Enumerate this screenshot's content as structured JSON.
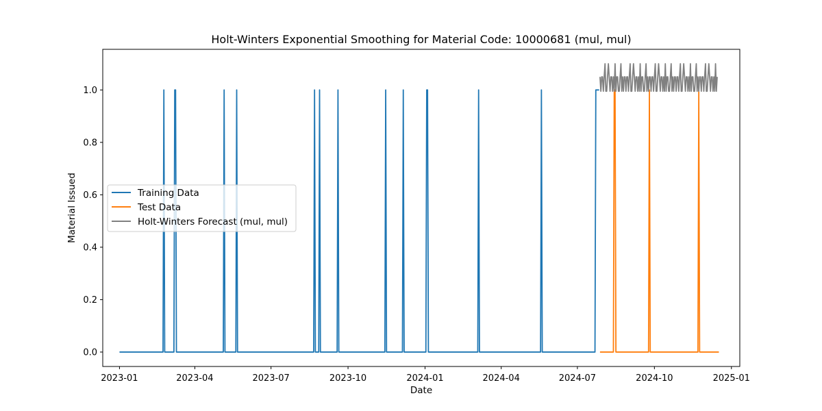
{
  "chart_data": {
    "type": "line",
    "title": "Holt-Winters Exponential Smoothing for Material Code: 10000681 (mul, mul)",
    "xlabel": "Date",
    "ylabel": "Material Issued",
    "xlim": [
      "2022-12-12",
      "2025-01-11"
    ],
    "ylim": [
      -0.055,
      1.155
    ],
    "x_ticks": [
      "2023-01",
      "2023-04",
      "2023-07",
      "2023-10",
      "2024-01",
      "2024-04",
      "2024-07",
      "2024-10",
      "2025-01"
    ],
    "y_ticks": [
      0.0,
      0.2,
      0.4,
      0.6,
      0.8,
      1.0
    ],
    "y_tick_labels": [
      "0.0",
      "0.2",
      "0.4",
      "0.6",
      "0.8",
      "1.0"
    ],
    "grid": false,
    "legend_position": "center-left",
    "colors": {
      "training": "#1f77b4",
      "test": "#ff7f0e",
      "forecast": "#808080"
    },
    "series": [
      {
        "name": "Training Data",
        "color": "#1f77b4",
        "start": "2023-01-01",
        "end": "2024-07-27",
        "spikes": [
          "2023-02-23",
          "2023-03-08",
          "2023-03-09",
          "2023-05-06",
          "2023-05-21",
          "2023-08-22",
          "2023-08-28",
          "2023-09-19",
          "2023-11-15",
          "2023-12-06",
          "2024-01-03",
          "2024-01-04",
          "2024-03-05",
          "2024-05-19",
          "2024-07-23",
          "2024-07-24",
          "2024-07-25",
          "2024-07-26",
          "2024-07-27"
        ]
      },
      {
        "name": "Test Data",
        "color": "#ff7f0e",
        "start": "2024-07-28",
        "end": "2024-12-17",
        "spikes": [
          "2024-08-14",
          "2024-08-15",
          "2024-09-25",
          "2024-11-23"
        ]
      },
      {
        "name": "Holt-Winters Forecast (mul, mul)",
        "color": "#808080",
        "start": "2024-07-28",
        "pattern": [
          1.05,
          0.995,
          1.05,
          1.05,
          0.995,
          1.05,
          1.1,
          0.995,
          0.995,
          1.05,
          1.1,
          1.05,
          0.995,
          1.05,
          1.05,
          0.995,
          1.05,
          0.995,
          1.1,
          0.995,
          1.05,
          1.05,
          0.995,
          0.995,
          1.05,
          1.1,
          0.995,
          1.05,
          0.995,
          1.05
        ],
        "values": [
          1.05,
          0.995,
          1.05,
          1.05,
          0.995,
          1.05,
          1.1,
          0.995,
          0.995,
          1.05,
          1.1,
          1.05,
          0.995,
          1.05,
          1.05,
          0.995,
          1.05,
          0.995,
          1.1,
          0.995,
          1.05,
          1.05,
          0.995,
          0.995,
          1.05,
          1.1,
          0.995,
          1.05,
          0.995,
          1.05,
          1.05,
          0.995,
          1.05,
          1.05,
          0.995,
          1.05,
          1.1,
          0.995,
          0.995,
          1.05,
          1.1,
          1.05,
          0.995,
          1.05,
          1.05,
          0.995,
          1.05,
          0.995,
          1.1,
          0.995,
          1.05,
          1.05,
          0.995,
          0.995,
          1.05,
          1.1,
          0.995,
          1.05,
          0.995,
          1.05,
          1.05,
          0.995,
          1.05,
          1.05,
          0.995,
          1.05,
          1.1,
          0.995,
          0.995,
          1.05,
          1.1,
          1.05,
          0.995,
          1.05,
          1.05,
          0.995,
          1.05,
          0.995,
          1.1,
          0.995,
          1.05,
          1.05,
          0.995,
          0.995,
          1.05,
          1.1,
          0.995,
          1.05,
          0.995,
          1.05,
          1.05,
          0.995,
          1.05,
          1.05,
          0.995,
          1.05,
          1.1,
          0.995,
          0.995,
          1.05,
          1.1,
          1.05,
          0.995,
          1.05,
          1.05,
          0.995,
          1.05,
          0.995,
          1.1,
          0.995,
          1.05,
          1.05,
          0.995,
          0.995,
          1.05,
          1.1,
          0.995,
          1.05,
          0.995,
          1.05,
          1.05,
          0.995,
          1.05,
          1.05,
          0.995,
          1.05,
          1.1,
          0.995,
          0.995,
          1.05,
          1.1,
          1.05,
          0.995,
          1.05,
          1.05,
          0.995,
          1.05,
          0.995,
          1.1,
          0.995,
          1.05
        ]
      }
    ]
  }
}
